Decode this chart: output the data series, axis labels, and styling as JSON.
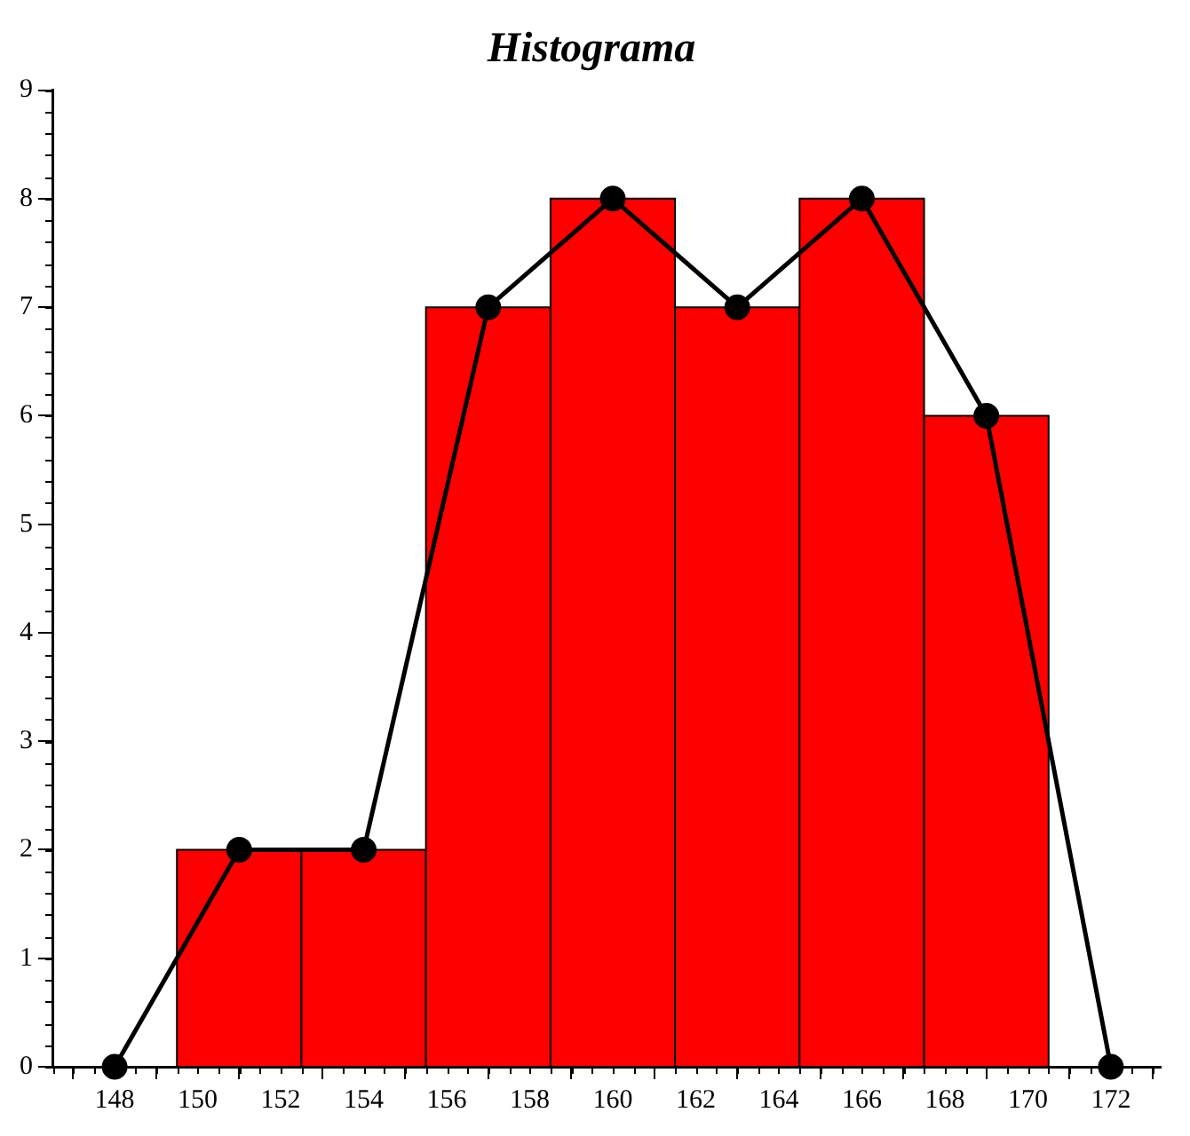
{
  "chart_data": {
    "type": "histogram",
    "title": "Histograma",
    "bins": [
      149.5,
      152.5,
      155.5,
      158.5,
      161.5,
      164.5,
      167.5,
      170.5
    ],
    "values": [
      2,
      2,
      7,
      8,
      7,
      8,
      6
    ],
    "color": "#ff0000",
    "series": [
      {
        "type": "line",
        "color": "#000000",
        "x": [
          148,
          151,
          154,
          157,
          160,
          163,
          166,
          169,
          172
        ],
        "values": [
          0,
          2,
          2,
          7,
          8,
          7,
          8,
          6,
          0
        ]
      }
    ],
    "marker": "circle",
    "xlim": [
      146.5,
      173.2
    ],
    "xticks": [
      148,
      150,
      152,
      154,
      156,
      158,
      160,
      162,
      164,
      166,
      168,
      170,
      172
    ],
    "ylim": [
      0,
      9
    ],
    "yticks": [
      0,
      1,
      2,
      3,
      4,
      5,
      6,
      7,
      8,
      9
    ],
    "grid": false,
    "legend": false
  }
}
